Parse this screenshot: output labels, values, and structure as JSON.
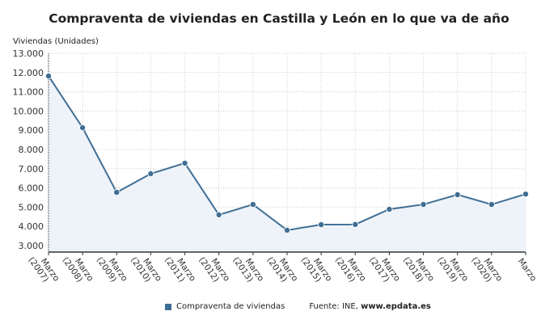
{
  "chart_data": {
    "type": "area",
    "title": "Compraventa de viviendas en Castilla y León en lo que va de año",
    "ylabel": "Viviendas (Unidades)",
    "xlabel": "",
    "categories": [
      "Marzo (2007)",
      "Marzo (2008)",
      "Marzo (2009)",
      "Marzo (2010)",
      "Marzo (2011)",
      "Marzo (2012)",
      "Marzo (2013)",
      "Marzo (2014)",
      "Marzo (2015)",
      "Marzo (2016)",
      "Marzo (2017)",
      "Marzo (2018)",
      "Marzo (2019)",
      "Marzo (2020)",
      "Marzo"
    ],
    "series": [
      {
        "name": "Compraventa de viviendas",
        "values": [
          11820,
          9130,
          5770,
          6740,
          7290,
          4600,
          5140,
          3800,
          4090,
          4100,
          4890,
          5140,
          5650,
          5140,
          5680
        ]
      }
    ],
    "ylim": [
      2700,
      13000
    ],
    "yticks": [
      "3.000",
      "4.000",
      "5.000",
      "6.000",
      "7.000",
      "8.000",
      "9.000",
      "10.000",
      "11.000",
      "12.000",
      "13.000"
    ],
    "grid": true,
    "legend_position": "bottom",
    "colors": {
      "line": "#3f6e94",
      "fill": "#eef3f9",
      "grid": "#cccccc"
    }
  },
  "source": {
    "prefix": "Fuente: INE, ",
    "site": "www.epdata.es"
  }
}
